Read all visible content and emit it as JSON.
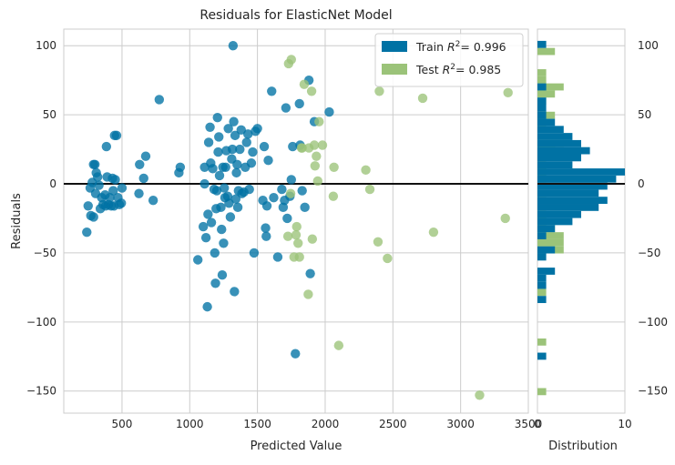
{
  "chart_data": {
    "type": "scatter",
    "title": "Residuals for ElasticNet Model",
    "xlabel": "Predicted Value",
    "ylabel": "Residuals",
    "hist_xlabel": "Distribution",
    "xlim": [
      70,
      3500
    ],
    "ylim": [
      -166,
      112
    ],
    "xticks": [
      500,
      1000,
      1500,
      2000,
      2500,
      3000,
      3500
    ],
    "yticks": [
      100,
      50,
      0,
      -50,
      -100,
      -150
    ],
    "ytick_labels": [
      "100",
      "50",
      "0",
      "−50",
      "−100",
      "−150"
    ],
    "hist_xlim": [
      0,
      10
    ],
    "hist_xticks": [
      "0",
      "10"
    ],
    "grid": true,
    "legend_position": "top-right",
    "series": [
      {
        "name": "Train",
        "r2_label": "Train ",
        "r2_value": "= 0.996",
        "color": "#0072a4",
        "points": [
          [
            240,
            -35
          ],
          [
            250,
            -16
          ],
          [
            265,
            -3
          ],
          [
            270,
            -23
          ],
          [
            280,
            1
          ],
          [
            290,
            -24
          ],
          [
            290,
            14
          ],
          [
            300,
            14
          ],
          [
            305,
            -7
          ],
          [
            310,
            8
          ],
          [
            320,
            5
          ],
          [
            330,
            -1
          ],
          [
            340,
            -18
          ],
          [
            350,
            -10
          ],
          [
            360,
            -15
          ],
          [
            375,
            -8
          ],
          [
            380,
            -16
          ],
          [
            385,
            27
          ],
          [
            390,
            5
          ],
          [
            400,
            -15
          ],
          [
            410,
            -10
          ],
          [
            420,
            -16
          ],
          [
            430,
            4
          ],
          [
            435,
            -5
          ],
          [
            440,
            -16
          ],
          [
            445,
            35
          ],
          [
            450,
            3
          ],
          [
            460,
            35
          ],
          [
            470,
            -10
          ],
          [
            480,
            -15
          ],
          [
            495,
            -14
          ],
          [
            500,
            -3
          ],
          [
            625,
            -7
          ],
          [
            630,
            14
          ],
          [
            660,
            4
          ],
          [
            675,
            20
          ],
          [
            730,
            -12
          ],
          [
            775,
            61
          ],
          [
            920,
            8
          ],
          [
            930,
            12
          ],
          [
            1060,
            -55
          ],
          [
            1100,
            -31
          ],
          [
            1110,
            0
          ],
          [
            1110,
            12
          ],
          [
            1120,
            -39
          ],
          [
            1130,
            -89
          ],
          [
            1135,
            -22
          ],
          [
            1140,
            30
          ],
          [
            1150,
            41
          ],
          [
            1155,
            15
          ],
          [
            1160,
            -28
          ],
          [
            1170,
            11
          ],
          [
            1180,
            -4
          ],
          [
            1185,
            -50
          ],
          [
            1190,
            -72
          ],
          [
            1195,
            -18
          ],
          [
            1200,
            -5
          ],
          [
            1205,
            48
          ],
          [
            1210,
            23
          ],
          [
            1215,
            34
          ],
          [
            1220,
            6
          ],
          [
            1230,
            -17
          ],
          [
            1235,
            -33
          ],
          [
            1240,
            -66
          ],
          [
            1245,
            12
          ],
          [
            1250,
            -43
          ],
          [
            1255,
            -3
          ],
          [
            1260,
            -10
          ],
          [
            1265,
            12
          ],
          [
            1270,
            24
          ],
          [
            1280,
            -9
          ],
          [
            1285,
            40
          ],
          [
            1290,
            -14
          ],
          [
            1300,
            -24
          ],
          [
            1310,
            18
          ],
          [
            1315,
            25
          ],
          [
            1320,
            100
          ],
          [
            1325,
            45
          ],
          [
            1330,
            -78
          ],
          [
            1335,
            35
          ],
          [
            1340,
            -11
          ],
          [
            1345,
            8
          ],
          [
            1350,
            14
          ],
          [
            1355,
            -17
          ],
          [
            1360,
            -5
          ],
          [
            1370,
            25
          ],
          [
            1380,
            39
          ],
          [
            1385,
            -7
          ],
          [
            1400,
            -6
          ],
          [
            1410,
            12
          ],
          [
            1420,
            30
          ],
          [
            1430,
            36
          ],
          [
            1440,
            -4
          ],
          [
            1455,
            15
          ],
          [
            1465,
            23
          ],
          [
            1475,
            -50
          ],
          [
            1485,
            38
          ],
          [
            1500,
            40
          ],
          [
            1540,
            -12
          ],
          [
            1550,
            27
          ],
          [
            1560,
            -32
          ],
          [
            1565,
            -38
          ],
          [
            1570,
            -16
          ],
          [
            1580,
            17
          ],
          [
            1605,
            67
          ],
          [
            1620,
            -10
          ],
          [
            1650,
            -53
          ],
          [
            1680,
            -4
          ],
          [
            1690,
            -17
          ],
          [
            1700,
            -12
          ],
          [
            1710,
            55
          ],
          [
            1720,
            -25
          ],
          [
            1740,
            -9
          ],
          [
            1750,
            3
          ],
          [
            1760,
            27
          ],
          [
            1780,
            -123
          ],
          [
            1810,
            58
          ],
          [
            1815,
            28
          ],
          [
            1830,
            -5
          ],
          [
            1850,
            -17
          ],
          [
            1880,
            75
          ],
          [
            1890,
            -65
          ],
          [
            1920,
            45
          ],
          [
            2030,
            52
          ]
        ]
      },
      {
        "name": "Test",
        "r2_label": "Test ",
        "r2_value": "= 0.985",
        "color": "#9bc379",
        "points": [
          [
            1725,
            -38
          ],
          [
            1730,
            87
          ],
          [
            1745,
            -7
          ],
          [
            1750,
            90
          ],
          [
            1770,
            -53
          ],
          [
            1785,
            -37
          ],
          [
            1790,
            -31
          ],
          [
            1800,
            -43
          ],
          [
            1810,
            -53
          ],
          [
            1825,
            26
          ],
          [
            1830,
            26
          ],
          [
            1845,
            72
          ],
          [
            1875,
            -80
          ],
          [
            1880,
            26
          ],
          [
            1900,
            67
          ],
          [
            1905,
            -40
          ],
          [
            1920,
            28
          ],
          [
            1925,
            13
          ],
          [
            1935,
            20
          ],
          [
            1945,
            2
          ],
          [
            1955,
            45
          ],
          [
            1980,
            28
          ],
          [
            2060,
            -9
          ],
          [
            2065,
            12
          ],
          [
            2100,
            -117
          ],
          [
            2300,
            10
          ],
          [
            2330,
            -4
          ],
          [
            2390,
            -42
          ],
          [
            2400,
            67
          ],
          [
            2460,
            -54
          ],
          [
            2720,
            62
          ],
          [
            2800,
            -35
          ],
          [
            3140,
            -153
          ],
          [
            3330,
            -25
          ],
          [
            3350,
            66
          ]
        ]
      }
    ],
    "histogram": {
      "bins": [
        -153,
        -147.87,
        -142.74,
        -137.61,
        -132.48,
        -127.35,
        -122.22,
        -117.09,
        -111.96,
        -106.83,
        -101.7,
        -96.57,
        -91.44,
        -86.31,
        -81.18,
        -76.05,
        -70.92,
        -65.79,
        -60.66,
        -55.53,
        -50.4,
        -45.27,
        -40.14,
        -35.01,
        -29.88,
        -24.75,
        -19.62,
        -14.49,
        -9.36,
        -4.23,
        0.9,
        6.03,
        11.16,
        16.29,
        21.42,
        26.55,
        31.68,
        36.81,
        41.94,
        47.07,
        52.2,
        57.33,
        62.46,
        67.59,
        72.72,
        77.85,
        82.98,
        88.11,
        93.24,
        98.37,
        103.5
      ],
      "train_counts": [
        0,
        0,
        0,
        0,
        0,
        1,
        0,
        0,
        0,
        0,
        0,
        0,
        0,
        1,
        0,
        1,
        1,
        2,
        0,
        1,
        2,
        0,
        1,
        2,
        4,
        5,
        7,
        8,
        7,
        8,
        9,
        10,
        4,
        5,
        6,
        5,
        4,
        3,
        2,
        1,
        1,
        1,
        0,
        1,
        0,
        0,
        0,
        0,
        0,
        1
      ],
      "test_counts": [
        1,
        0,
        0,
        0,
        0,
        0,
        0,
        1,
        0,
        0,
        0,
        0,
        0,
        0,
        1,
        0,
        0,
        0,
        0,
        0,
        3,
        3,
        3,
        2,
        1,
        1,
        0,
        0,
        1,
        0,
        1,
        1,
        0,
        1,
        2,
        3,
        0,
        0,
        1,
        2,
        0,
        1,
        2,
        3,
        1,
        1,
        0,
        0,
        2,
        0
      ]
    }
  }
}
